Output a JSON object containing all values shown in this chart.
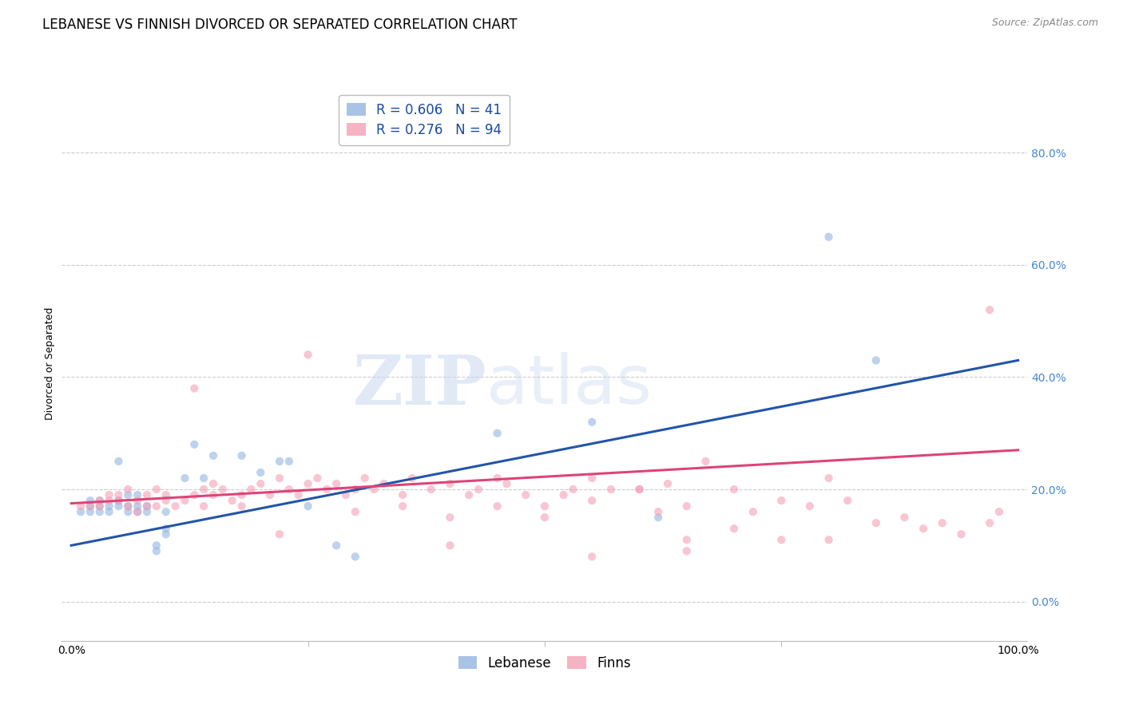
{
  "title": "LEBANESE VS FINNISH DIVORCED OR SEPARATED CORRELATION CHART",
  "source": "Source: ZipAtlas.com",
  "ylabel": "Divorced or Separated",
  "watermark_zip": "ZIP",
  "watermark_atlas": "atlas",
  "legend_blue_R": "0.606",
  "legend_blue_N": "41",
  "legend_pink_R": "0.276",
  "legend_pink_N": "94",
  "legend_label_blue": "Lebanese",
  "legend_label_pink": "Finns",
  "blue_color": "#92b4e0",
  "pink_color": "#f4a0b5",
  "blue_line_color": "#2255aa",
  "pink_line_color": "#dd4477",
  "ytick_labels": [
    "0.0%",
    "20.0%",
    "40.0%",
    "60.0%",
    "80.0%"
  ],
  "ytick_values": [
    0.0,
    0.2,
    0.4,
    0.6,
    0.8
  ],
  "xlim": [
    -0.01,
    1.01
  ],
  "ylim": [
    -0.07,
    0.92
  ],
  "blue_scatter_x": [
    0.01,
    0.02,
    0.02,
    0.02,
    0.03,
    0.03,
    0.03,
    0.04,
    0.04,
    0.05,
    0.05,
    0.05,
    0.06,
    0.06,
    0.06,
    0.07,
    0.07,
    0.07,
    0.08,
    0.08,
    0.09,
    0.09,
    0.1,
    0.1,
    0.1,
    0.12,
    0.13,
    0.14,
    0.15,
    0.18,
    0.2,
    0.22,
    0.23,
    0.25,
    0.28,
    0.3,
    0.45,
    0.55,
    0.62,
    0.8,
    0.85
  ],
  "blue_scatter_y": [
    0.16,
    0.17,
    0.16,
    0.18,
    0.17,
    0.16,
    0.18,
    0.17,
    0.16,
    0.18,
    0.17,
    0.25,
    0.17,
    0.19,
    0.16,
    0.17,
    0.16,
    0.19,
    0.17,
    0.16,
    0.1,
    0.09,
    0.12,
    0.16,
    0.13,
    0.22,
    0.28,
    0.22,
    0.26,
    0.26,
    0.23,
    0.25,
    0.25,
    0.17,
    0.1,
    0.08,
    0.3,
    0.32,
    0.15,
    0.65,
    0.43
  ],
  "pink_scatter_x": [
    0.01,
    0.02,
    0.03,
    0.03,
    0.04,
    0.04,
    0.05,
    0.05,
    0.06,
    0.06,
    0.07,
    0.07,
    0.08,
    0.08,
    0.09,
    0.09,
    0.1,
    0.1,
    0.11,
    0.12,
    0.13,
    0.14,
    0.14,
    0.15,
    0.15,
    0.16,
    0.17,
    0.18,
    0.19,
    0.2,
    0.21,
    0.22,
    0.23,
    0.24,
    0.25,
    0.26,
    0.27,
    0.28,
    0.29,
    0.3,
    0.31,
    0.32,
    0.33,
    0.35,
    0.36,
    0.38,
    0.4,
    0.42,
    0.43,
    0.45,
    0.46,
    0.48,
    0.5,
    0.52,
    0.53,
    0.55,
    0.57,
    0.6,
    0.62,
    0.63,
    0.65,
    0.67,
    0.7,
    0.72,
    0.75,
    0.78,
    0.8,
    0.82,
    0.85,
    0.88,
    0.9,
    0.92,
    0.94,
    0.97,
    0.98,
    0.13,
    0.18,
    0.22,
    0.25,
    0.3,
    0.35,
    0.4,
    0.45,
    0.5,
    0.55,
    0.6,
    0.65,
    0.7,
    0.75,
    0.97,
    0.4,
    0.55,
    0.65,
    0.8
  ],
  "pink_scatter_y": [
    0.17,
    0.17,
    0.18,
    0.17,
    0.19,
    0.18,
    0.18,
    0.19,
    0.17,
    0.2,
    0.18,
    0.16,
    0.17,
    0.19,
    0.17,
    0.2,
    0.18,
    0.19,
    0.17,
    0.18,
    0.19,
    0.2,
    0.17,
    0.19,
    0.21,
    0.2,
    0.18,
    0.19,
    0.2,
    0.21,
    0.19,
    0.22,
    0.2,
    0.19,
    0.21,
    0.22,
    0.2,
    0.21,
    0.19,
    0.2,
    0.22,
    0.2,
    0.21,
    0.19,
    0.22,
    0.2,
    0.21,
    0.19,
    0.2,
    0.22,
    0.21,
    0.19,
    0.17,
    0.19,
    0.2,
    0.18,
    0.2,
    0.2,
    0.16,
    0.21,
    0.17,
    0.25,
    0.2,
    0.16,
    0.18,
    0.17,
    0.22,
    0.18,
    0.14,
    0.15,
    0.13,
    0.14,
    0.12,
    0.14,
    0.16,
    0.38,
    0.17,
    0.12,
    0.44,
    0.16,
    0.17,
    0.15,
    0.17,
    0.15,
    0.22,
    0.2,
    0.11,
    0.13,
    0.11,
    0.52,
    0.1,
    0.08,
    0.09,
    0.11
  ],
  "blue_line_x0": 0.0,
  "blue_line_x1": 1.0,
  "blue_line_y0": 0.1,
  "blue_line_y1": 0.43,
  "pink_line_x0": 0.0,
  "pink_line_x1": 1.0,
  "pink_line_y0": 0.175,
  "pink_line_y1": 0.27,
  "background_color": "#ffffff",
  "grid_color": "#cccccc",
  "title_fontsize": 12,
  "source_fontsize": 9,
  "axis_label_fontsize": 9,
  "tick_fontsize": 10,
  "legend_fontsize": 12,
  "scatter_alpha": 0.6,
  "scatter_size": 55,
  "line_width": 2.2
}
